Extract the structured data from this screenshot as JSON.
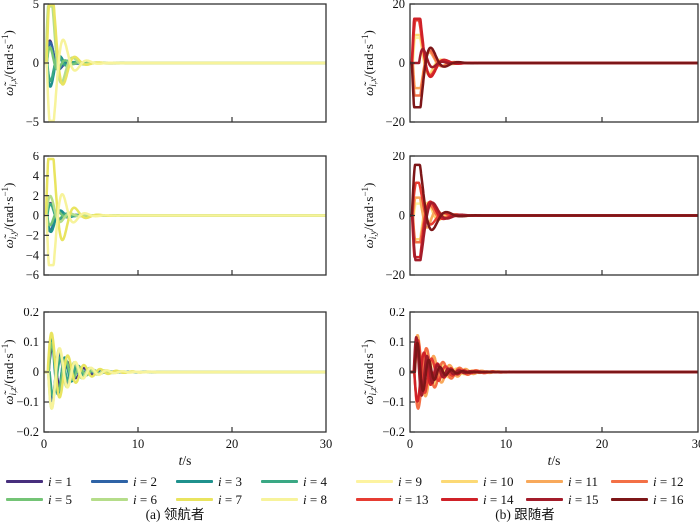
{
  "figure": {
    "xlabel": {
      "var": "t",
      "rest": "/s"
    },
    "columns": [
      {
        "caption": "(a) 领航者",
        "legend": [
          {
            "i": 1,
            "label": "i = 1",
            "color": "#472f7d"
          },
          {
            "i": 2,
            "label": "i = 2",
            "color": "#2e63a6"
          },
          {
            "i": 3,
            "label": "i = 3",
            "color": "#1f918d"
          },
          {
            "i": 4,
            "label": "i = 4",
            "color": "#3aa884"
          },
          {
            "i": 5,
            "label": "i = 5",
            "color": "#74c476"
          },
          {
            "i": 6,
            "label": "i = 6",
            "color": "#b5dd8a"
          },
          {
            "i": 7,
            "label": "i = 7",
            "color": "#e9e45f"
          },
          {
            "i": 8,
            "label": "i = 8",
            "color": "#f7f39b"
          }
        ]
      },
      {
        "caption": "(b) 跟随者",
        "legend": [
          {
            "i": 9,
            "label": "i = 9",
            "color": "#fdf3a0"
          },
          {
            "i": 10,
            "label": "i = 10",
            "color": "#fcd975"
          },
          {
            "i": 11,
            "label": "i = 11",
            "color": "#f8a95b"
          },
          {
            "i": 12,
            "label": "i = 12",
            "color": "#f37046"
          },
          {
            "i": 13,
            "label": "i = 13",
            "color": "#e63c32"
          },
          {
            "i": 14,
            "label": "i = 14",
            "color": "#cf2128"
          },
          {
            "i": 15,
            "label": "i = 15",
            "color": "#a31c2a"
          },
          {
            "i": 16,
            "label": "i = 16",
            "color": "#7d1618"
          }
        ]
      }
    ]
  },
  "chart_data": [
    {
      "id": "ax",
      "type": "line",
      "col": 0,
      "row": 0,
      "ylabel": {
        "sym": "ω̃",
        "sub": "i,x",
        "rest": "/(rad·s",
        "sup": "−1",
        "end": ")"
      },
      "xlim": [
        0,
        30
      ],
      "ylim": [
        -5,
        5
      ],
      "xticks": [
        0,
        10,
        20,
        30
      ],
      "xtick_marks": [
        10,
        20
      ],
      "xtick_labels": null,
      "yticks": [
        {
          "v": 5,
          "label": "5"
        },
        {
          "v": 0,
          "label": "0"
        },
        {
          "v": -5,
          "label": "−5"
        }
      ],
      "series": [
        {
          "i": 1,
          "amp": 3.4,
          "freq": 0.5,
          "decay": 1.35,
          "t0": 0.25,
          "clip": 5
        },
        {
          "i": 2,
          "amp": 2.9,
          "freq": 0.55,
          "decay": 1.25,
          "t0": 0.3,
          "clip": 5
        },
        {
          "i": 3,
          "amp": -3.4,
          "freq": 0.52,
          "decay": 1.25,
          "t0": 0.3,
          "clip": 5
        },
        {
          "i": 4,
          "amp": -2.4,
          "freq": 0.6,
          "decay": 1.2,
          "t0": 0.35,
          "clip": 5
        },
        {
          "i": 5,
          "amp": 2.0,
          "freq": 0.62,
          "decay": 1.1,
          "t0": 0.3,
          "clip": 5
        },
        {
          "i": 6,
          "amp": 11.0,
          "freq": 0.42,
          "decay": 1.1,
          "t0": 0.2,
          "clip": 4.8
        },
        {
          "i": 7,
          "amp": 11.0,
          "freq": 0.4,
          "decay": 1.0,
          "t0": 0.28,
          "clip": 4.9
        },
        {
          "i": 8,
          "amp": -10.0,
          "freq": 0.4,
          "decay": 0.9,
          "t0": 0.3,
          "clip": 4.9
        }
      ]
    },
    {
      "id": "ay",
      "type": "line",
      "col": 0,
      "row": 1,
      "ylabel": {
        "sym": "ω̃",
        "sub": "i,y",
        "rest": "/(rad·s",
        "sup": "−1",
        "end": ")"
      },
      "xlim": [
        0,
        30
      ],
      "ylim": [
        -6,
        6
      ],
      "xticks": [
        0,
        10,
        20,
        30
      ],
      "xtick_marks": [
        10,
        20
      ],
      "xtick_labels": null,
      "yticks": [
        {
          "v": 6,
          "label": "6"
        },
        {
          "v": 4,
          "label": "4"
        },
        {
          "v": 2,
          "label": "2"
        },
        {
          "v": 0,
          "label": "0"
        },
        {
          "v": -2,
          "label": "−2"
        },
        {
          "v": -4,
          "label": "−4"
        },
        {
          "v": -6,
          "label": "−6"
        }
      ],
      "series": [
        {
          "i": 1,
          "amp": 2.2,
          "freq": 0.5,
          "decay": 1.3,
          "t0": 0.3,
          "clip": 6
        },
        {
          "i": 2,
          "amp": -2.6,
          "freq": 0.55,
          "decay": 1.2,
          "t0": 0.3,
          "clip": 6
        },
        {
          "i": 3,
          "amp": -2.8,
          "freq": 0.5,
          "decay": 1.2,
          "t0": 0.35,
          "clip": 6
        },
        {
          "i": 4,
          "amp": 1.8,
          "freq": 0.6,
          "decay": 1.15,
          "t0": 0.35,
          "clip": 6
        },
        {
          "i": 5,
          "amp": -1.5,
          "freq": 0.6,
          "decay": 1.1,
          "t0": 0.3,
          "clip": 6
        },
        {
          "i": 6,
          "amp": 3.2,
          "freq": 0.48,
          "decay": 1.05,
          "t0": 0.25,
          "clip": 6
        },
        {
          "i": 7,
          "amp": 13.0,
          "freq": 0.4,
          "decay": 0.92,
          "t0": 0.22,
          "clip": 5.7
        },
        {
          "i": 8,
          "amp": -11.0,
          "freq": 0.42,
          "decay": 0.95,
          "t0": 0.28,
          "clip": 5.0
        }
      ]
    },
    {
      "id": "az",
      "type": "line",
      "col": 0,
      "row": 2,
      "ylabel": {
        "sym": "ω̃",
        "sub": "i,z",
        "rest": "/(rad·s",
        "sup": "−1",
        "end": ")"
      },
      "xlim": [
        0,
        30
      ],
      "ylim": [
        -0.2,
        0.2
      ],
      "xticks": [
        0,
        10,
        20,
        30
      ],
      "xtick_marks": [
        10,
        20
      ],
      "xtick_labels": [
        "0",
        "10",
        "20",
        "30"
      ],
      "yticks": [
        {
          "v": 0.2,
          "label": "0.2"
        },
        {
          "v": 0.1,
          "label": "0.1"
        },
        {
          "v": 0,
          "label": "0"
        },
        {
          "v": -0.1,
          "label": "−0.1"
        },
        {
          "v": -0.2,
          "label": "−0.2"
        }
      ],
      "series": [
        {
          "i": 1,
          "amp": 0.1,
          "freq": 0.6,
          "decay": 0.55,
          "t0": 0.5,
          "clip": 0.2
        },
        {
          "i": 2,
          "amp": -0.12,
          "freq": 0.65,
          "decay": 0.6,
          "t0": 0.5,
          "clip": 0.2
        },
        {
          "i": 3,
          "amp": 0.14,
          "freq": 0.7,
          "decay": 0.6,
          "t0": 0.45,
          "clip": 0.2
        },
        {
          "i": 4,
          "amp": -0.1,
          "freq": 0.6,
          "decay": 0.55,
          "t0": 0.6,
          "clip": 0.2
        },
        {
          "i": 5,
          "amp": 0.12,
          "freq": 0.68,
          "decay": 0.6,
          "t0": 0.5,
          "clip": 0.2
        },
        {
          "i": 6,
          "amp": -0.15,
          "freq": 0.62,
          "decay": 0.55,
          "t0": 0.45,
          "clip": 0.2
        },
        {
          "i": 7,
          "amp": 0.16,
          "freq": 0.58,
          "decay": 0.5,
          "t0": 0.4,
          "clip": 0.2
        },
        {
          "i": 8,
          "amp": -0.15,
          "freq": 0.6,
          "decay": 0.52,
          "t0": 0.45,
          "clip": 0.2
        }
      ]
    },
    {
      "id": "bx",
      "type": "line",
      "col": 1,
      "row": 0,
      "ylabel": {
        "sym": "ω̃",
        "sub": "i,x",
        "rest": "/(rad·s",
        "sup": "−1",
        "end": ")"
      },
      "xlim": [
        0,
        30
      ],
      "ylim": [
        -20,
        20
      ],
      "xticks": [
        0,
        10,
        20,
        30
      ],
      "xtick_marks": [
        10,
        20
      ],
      "xtick_labels": null,
      "yticks": [
        {
          "v": 20,
          "label": "20"
        },
        {
          "v": 0,
          "label": "0"
        },
        {
          "v": -20,
          "label": "−20"
        }
      ],
      "series": [
        {
          "i": 9,
          "amp": 20,
          "freq": 0.42,
          "decay": 1.0,
          "t0": 0.3,
          "clip": 8.5
        },
        {
          "i": 10,
          "amp": 24,
          "freq": 0.4,
          "decay": 1.0,
          "t0": 0.25,
          "clip": 9.5
        },
        {
          "i": 11,
          "amp": -22,
          "freq": 0.4,
          "decay": 1.0,
          "t0": 0.3,
          "clip": 8.5
        },
        {
          "i": 12,
          "amp": -28,
          "freq": 0.38,
          "decay": 1.0,
          "t0": 0.25,
          "clip": 11
        },
        {
          "i": 13,
          "amp": 30,
          "freq": 0.36,
          "decay": 1.0,
          "t0": 0.22,
          "clip": 14.5
        },
        {
          "i": 14,
          "amp": 40,
          "freq": 0.35,
          "decay": 1.05,
          "t0": 0.2,
          "clip": 15
        },
        {
          "i": 15,
          "amp": 8,
          "freq": 0.5,
          "decay": 1.2,
          "t0": 0.95,
          "clip": 20
        },
        {
          "i": 16,
          "amp": -40,
          "freq": 0.35,
          "decay": 1.0,
          "t0": 0.2,
          "clip": 15
        }
      ]
    },
    {
      "id": "by",
      "type": "line",
      "col": 1,
      "row": 1,
      "ylabel": {
        "sym": "ω̃",
        "sub": "i,y",
        "rest": "/(rad·s",
        "sup": "−1",
        "end": ")"
      },
      "xlim": [
        0,
        30
      ],
      "ylim": [
        -20,
        20
      ],
      "xticks": [
        0,
        10,
        20,
        30
      ],
      "xtick_marks": [
        10,
        20
      ],
      "xtick_labels": null,
      "yticks": [
        {
          "v": 20,
          "label": "20"
        },
        {
          "v": 0,
          "label": "0"
        },
        {
          "v": -20,
          "label": "−20"
        }
      ],
      "series": [
        {
          "i": 9,
          "amp": 9,
          "freq": 0.5,
          "decay": 0.9,
          "t0": 0.4,
          "clip": 4
        },
        {
          "i": 10,
          "amp": -20,
          "freq": 0.45,
          "decay": 0.95,
          "t0": 0.3,
          "clip": 8
        },
        {
          "i": 11,
          "amp": 13,
          "freq": 0.5,
          "decay": 0.8,
          "t0": 0.35,
          "clip": 6
        },
        {
          "i": 12,
          "amp": -20,
          "freq": 0.4,
          "decay": 0.95,
          "t0": 0.3,
          "clip": 9
        },
        {
          "i": 13,
          "amp": 22,
          "freq": 0.36,
          "decay": 1.0,
          "t0": 0.25,
          "clip": 11
        },
        {
          "i": 14,
          "amp": -34,
          "freq": 0.36,
          "decay": 1.0,
          "t0": 0.22,
          "clip": 14
        },
        {
          "i": 15,
          "amp": -34,
          "freq": 0.33,
          "decay": 0.95,
          "t0": 0.25,
          "clip": 15
        },
        {
          "i": 16,
          "amp": 38,
          "freq": 0.33,
          "decay": 0.95,
          "t0": 0.2,
          "clip": 17
        }
      ]
    },
    {
      "id": "bz",
      "type": "line",
      "col": 1,
      "row": 2,
      "ylabel": {
        "sym": "ω̃",
        "sub": "i,z",
        "rest": "/(rad·s",
        "sup": "−1",
        "end": ")"
      },
      "xlim": [
        0,
        30
      ],
      "ylim": [
        -0.2,
        0.2
      ],
      "xticks": [
        0,
        10,
        20,
        30
      ],
      "xtick_marks": [
        10,
        20
      ],
      "xtick_labels": [
        "0",
        "10",
        "20",
        "30"
      ],
      "yticks": [
        {
          "v": 0.2,
          "label": "0.2"
        },
        {
          "v": 0.1,
          "label": "0.1"
        },
        {
          "v": 0,
          "label": "0"
        },
        {
          "v": -0.1,
          "label": "−0.1"
        },
        {
          "v": -0.2,
          "label": "−0.2"
        }
      ],
      "series": [
        {
          "i": 9,
          "amp": 0.1,
          "freq": 0.6,
          "decay": 0.5,
          "t0": 0.5,
          "clip": 0.2
        },
        {
          "i": 10,
          "amp": -0.13,
          "freq": 0.62,
          "decay": 0.55,
          "t0": 0.45,
          "clip": 0.2
        },
        {
          "i": 11,
          "amp": 0.15,
          "freq": 0.6,
          "decay": 0.5,
          "t0": 0.4,
          "clip": 0.2
        },
        {
          "i": 12,
          "amp": -0.15,
          "freq": 0.58,
          "decay": 0.5,
          "t0": 0.45,
          "clip": 0.2
        },
        {
          "i": 13,
          "amp": 0.13,
          "freq": 0.7,
          "decay": 0.6,
          "t0": 0.5,
          "clip": 0.2
        },
        {
          "i": 14,
          "amp": -0.12,
          "freq": 0.72,
          "decay": 0.6,
          "t0": 0.45,
          "clip": 0.2
        },
        {
          "i": 15,
          "amp": 0.14,
          "freq": 0.9,
          "decay": 0.7,
          "t0": 0.4,
          "clip": 0.2
        },
        {
          "i": 16,
          "amp": 0.12,
          "freq": 0.85,
          "decay": 0.75,
          "t0": 0.5,
          "clip": 0.2
        }
      ]
    }
  ]
}
